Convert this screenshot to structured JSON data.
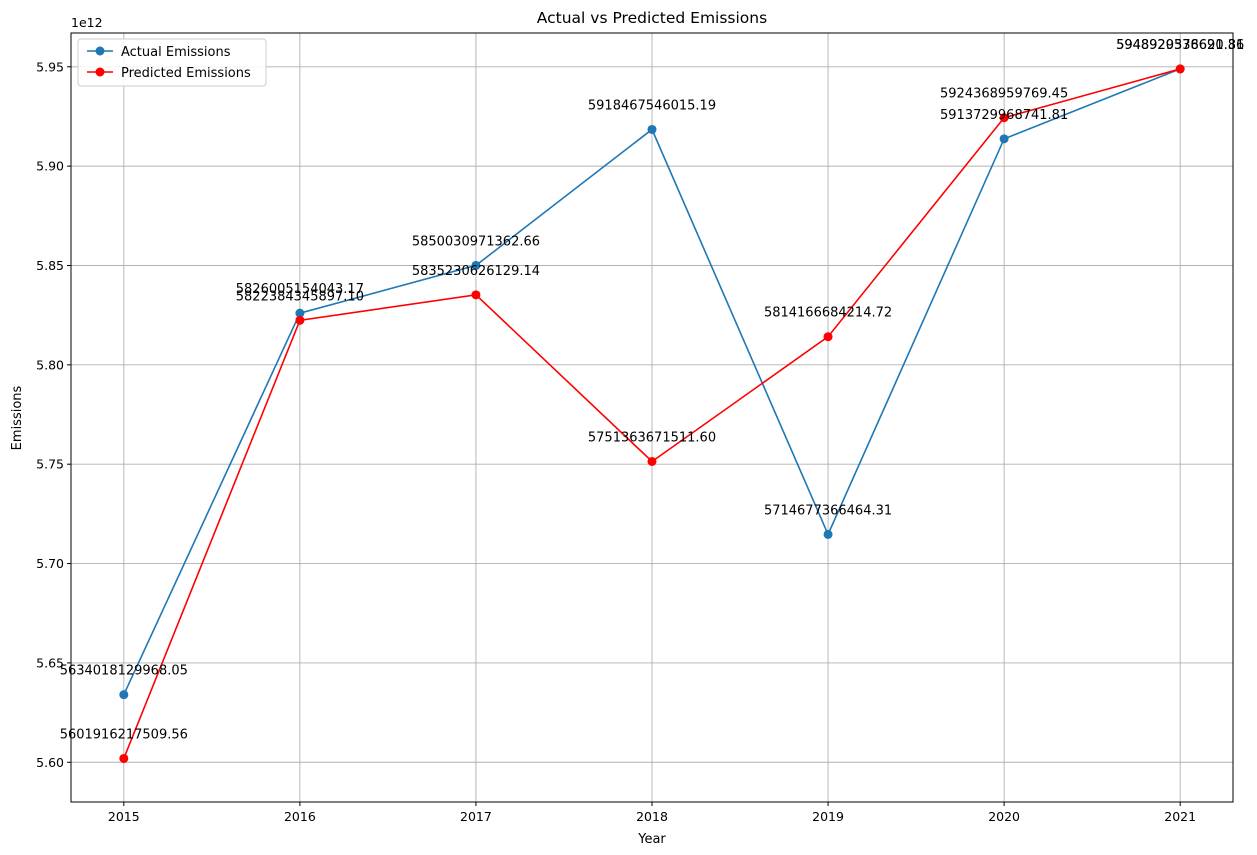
{
  "chart_data": {
    "type": "line",
    "title": "Actual vs Predicted Emissions",
    "xlabel": "Year",
    "ylabel": "Emissions",
    "offset_text": "1e12",
    "x": [
      2015,
      2016,
      2017,
      2018,
      2019,
      2020,
      2021
    ],
    "xlim": [
      2014.7,
      2021.3
    ],
    "ylim": [
      5580000000000.0,
      5967000000000.0
    ],
    "y_ticks": [
      5600000000000.0,
      5650000000000.0,
      5700000000000.0,
      5750000000000.0,
      5800000000000.0,
      5850000000000.0,
      5900000000000.0,
      5950000000000.0
    ],
    "y_tick_labels": [
      "5.60",
      "5.65",
      "5.70",
      "5.75",
      "5.80",
      "5.85",
      "5.90",
      "5.95"
    ],
    "x_tick_labels": [
      "2015",
      "2016",
      "2017",
      "2018",
      "2019",
      "2020",
      "2021"
    ],
    "grid": true,
    "legend": "top-left",
    "series": [
      {
        "name": "Actual Emissions",
        "color": "#1f77b4",
        "values": [
          5634018129968.05,
          5826005154043.17,
          5850030971362.66,
          5918467546015.19,
          5714677366464.31,
          5913729968741.81,
          5948929538690.86
        ],
        "labels": [
          "5634018129968.05",
          "5826005154043.17",
          "5850030971362.66",
          "5918467546015.19",
          "5714677366464.31",
          "5913729968741.81",
          "5948929538690.86"
        ]
      },
      {
        "name": "Predicted Emissions",
        "color": "#ff0000",
        "values": [
          5601916217509.56,
          5822384345897.1,
          5835230626129.14,
          5751363671511.6,
          5814166684214.72,
          5924368959769.45,
          5948920376621.31
        ],
        "labels": [
          "5601916217509.56",
          "5822384345897.10",
          "5835230626129.14",
          "5751363671511.60",
          "5814166684214.72",
          "5924368959769.45",
          "5948920376621.31"
        ]
      }
    ]
  }
}
